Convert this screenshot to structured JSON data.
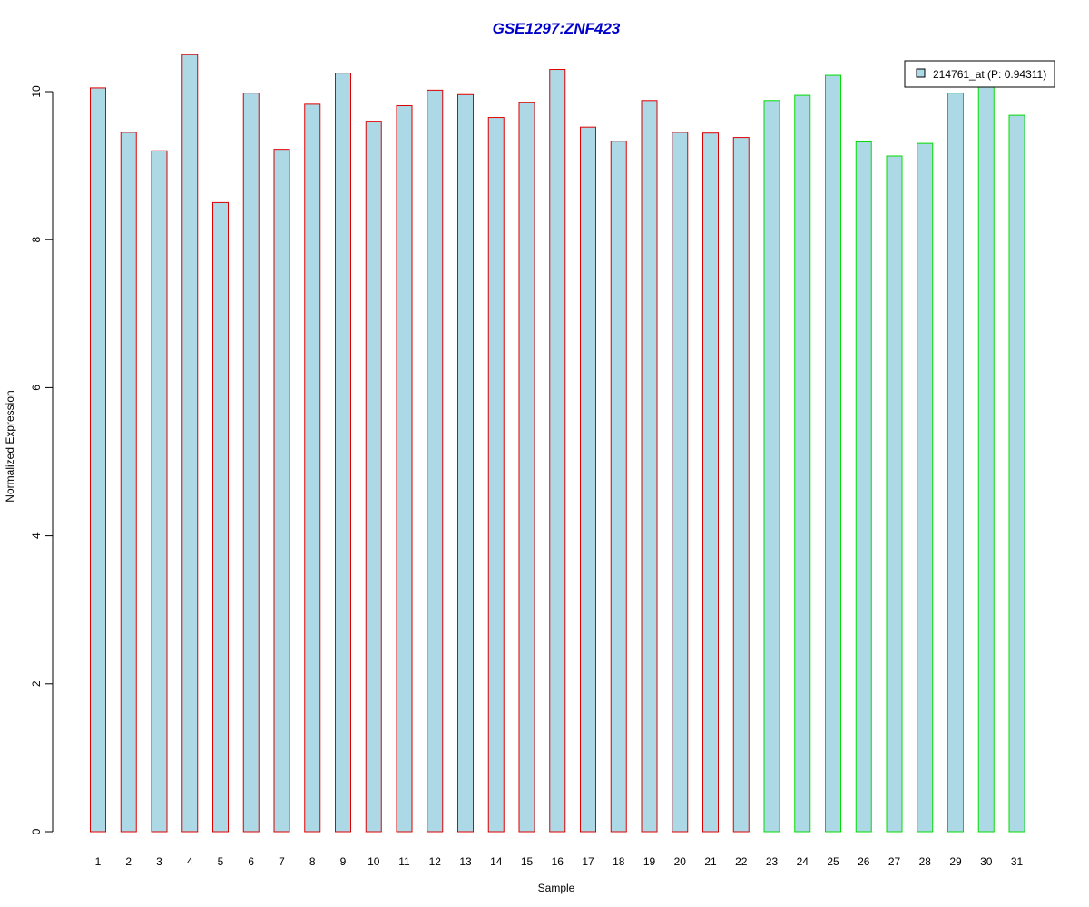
{
  "chart_data": {
    "type": "bar",
    "title": "GSE1297:ZNF423",
    "xlabel": "Sample",
    "ylabel": "Normalized Expression",
    "categories": [
      "1",
      "2",
      "3",
      "4",
      "5",
      "6",
      "7",
      "8",
      "9",
      "10",
      "11",
      "12",
      "13",
      "14",
      "15",
      "16",
      "17",
      "18",
      "19",
      "20",
      "21",
      "22",
      "23",
      "24",
      "25",
      "26",
      "27",
      "28",
      "29",
      "30",
      "31"
    ],
    "series": [
      {
        "name": "214761_at (P: 0.94311)",
        "values": [
          10.05,
          9.45,
          9.2,
          10.5,
          8.5,
          9.98,
          9.22,
          9.83,
          10.25,
          9.6,
          9.81,
          10.02,
          9.96,
          9.65,
          9.85,
          10.3,
          9.52,
          9.33,
          9.88,
          9.45,
          9.44,
          9.38,
          9.88,
          9.95,
          10.22,
          9.32,
          9.13,
          9.3,
          9.98,
          10.08,
          9.68
        ]
      }
    ],
    "groups": [
      {
        "from": 1,
        "to": 22,
        "border_color": "#dd0000"
      },
      {
        "from": 23,
        "to": 31,
        "border_color": "#00dd00"
      }
    ],
    "yticks": [
      0,
      2,
      4,
      6,
      8,
      10
    ],
    "ylim": [
      0,
      10.5
    ],
    "bar_fill": "#add8e6",
    "title_color": "#0000cc",
    "legend_position": "top-right",
    "grid": false
  }
}
